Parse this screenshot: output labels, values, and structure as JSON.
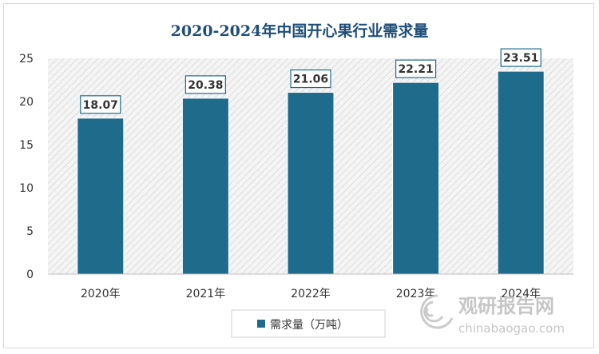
{
  "chart_data": {
    "type": "bar",
    "title": "2020-2024年中国开心果行业需求量",
    "categories": [
      "2020年",
      "2021年",
      "2022年",
      "2023年",
      "2024年"
    ],
    "series": [
      {
        "name": "需求量（万吨）",
        "values": [
          18.07,
          20.38,
          21.06,
          22.21,
          23.51
        ],
        "color": "#1f6b8c"
      }
    ],
    "data_labels": [
      "18.07",
      "20.38",
      "21.06",
      "22.21",
      "23.51"
    ],
    "y_ticks": [
      "0",
      "5",
      "10",
      "15",
      "20",
      "25"
    ],
    "ylim": [
      0,
      25
    ],
    "grid": false,
    "plot_background": "hatched light grey",
    "legend_position": "bottom-center"
  },
  "watermark": {
    "brand_text": "观研报告网",
    "url_text": "chinabaogao.com",
    "color": "#c0c0c0"
  },
  "colors": {
    "title": "#1f4e79",
    "bar": "#1f6b8c",
    "label_border": "#1f6b8c"
  }
}
